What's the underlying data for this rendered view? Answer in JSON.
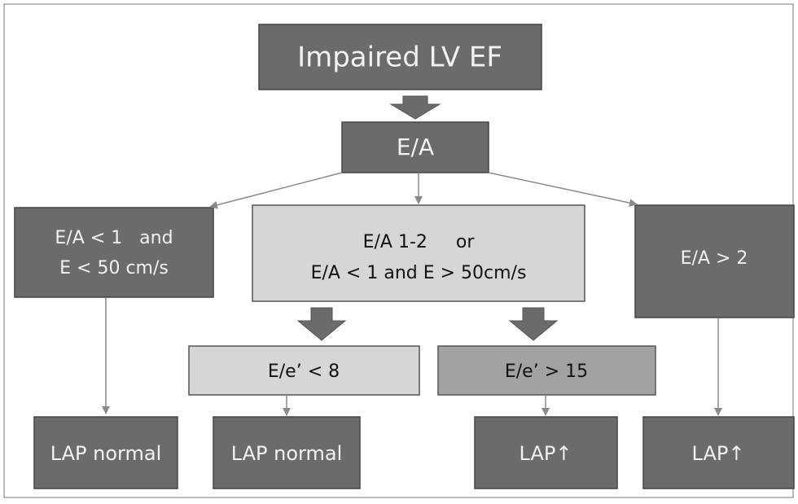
{
  "nodes": [
    {
      "lines": [
        "Impaired LV EF"
      ]
    },
    {
      "lines": [
        "E/A"
      ]
    },
    {
      "lines": [
        "E/A < 1   and",
        "E < 50 cm/s"
      ]
    },
    {
      "lines": [
        "E/A 1-2     or",
        "E/A < 1 and E > 50cm/s"
      ]
    },
    {
      "lines": [
        "E/A > 2"
      ]
    },
    {
      "lines": [
        "E/e’ < 8"
      ]
    },
    {
      "lines": [
        "E/e’ > 15"
      ]
    },
    {
      "lines": [
        "LAP normal"
      ]
    },
    {
      "lines": [
        "LAP normal"
      ]
    },
    {
      "lines": [
        "LAP↑"
      ]
    },
    {
      "lines": [
        "LAP↑"
      ]
    }
  ]
}
